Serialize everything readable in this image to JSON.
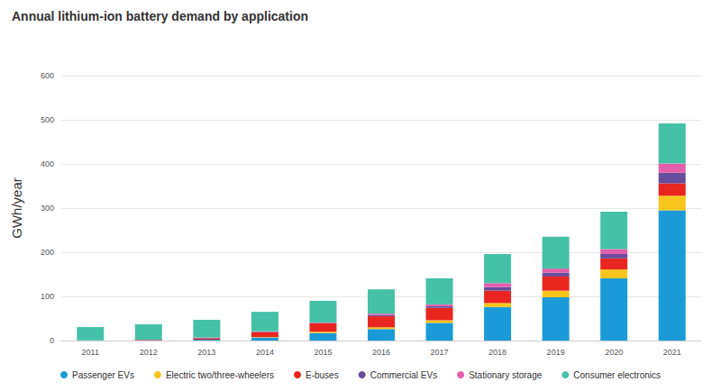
{
  "chart_data": {
    "type": "bar",
    "title": "Annual lithium-ion battery demand by application",
    "y_label": "GWh/year",
    "categories": [
      "2011",
      "2012",
      "2013",
      "2014",
      "2015",
      "2016",
      "2017",
      "2018",
      "2019",
      "2020",
      "2021"
    ],
    "series": [
      {
        "name": "Passenger EVs",
        "color": "#1a9bd7",
        "values": [
          0.5,
          1,
          2,
          7,
          17,
          26,
          40,
          76,
          98,
          141,
          295
        ]
      },
      {
        "name": "Electric two/three-wheelers",
        "color": "#f8c51c",
        "values": [
          0,
          0,
          0,
          1,
          3,
          4,
          6,
          9,
          15,
          20,
          33
        ]
      },
      {
        "name": "E-buses",
        "color": "#e8261f",
        "values": [
          0,
          1,
          3,
          11,
          19,
          25,
          28,
          28,
          32,
          25,
          28
        ]
      },
      {
        "name": "Commercial EVs",
        "color": "#6a4c9c",
        "values": [
          0,
          0,
          1,
          1,
          1,
          3,
          4,
          8,
          9,
          10,
          24
        ]
      },
      {
        "name": "Stationary storage",
        "color": "#e45fab",
        "values": [
          0,
          0,
          1,
          1,
          1,
          3,
          4,
          9,
          9,
          11,
          21
        ]
      },
      {
        "name": "Consumer electronics",
        "color": "#45c1a6",
        "values": [
          30,
          35,
          40,
          44,
          49,
          55,
          59,
          66,
          72,
          85,
          91
        ]
      }
    ],
    "ylim": [
      0,
      600
    ],
    "yticks": [
      0,
      100,
      200,
      300,
      400,
      500,
      600
    ],
    "stacked": true,
    "grid": true,
    "legend": "bottom"
  }
}
